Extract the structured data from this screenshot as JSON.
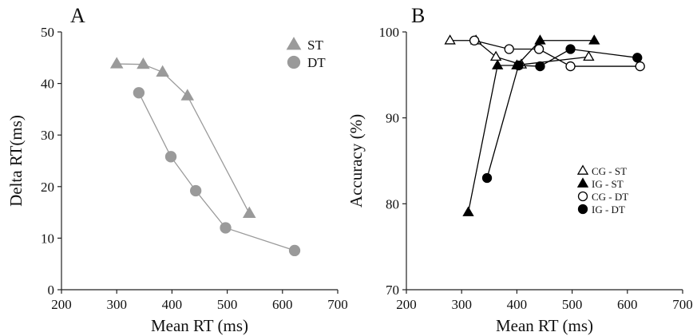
{
  "colors": {
    "gray": "#9a9a9a",
    "black": "#000000",
    "open_fill": "#ffffff",
    "axis": "#222222"
  },
  "chart_data": [
    {
      "type": "line",
      "panel_label": "A",
      "title": "",
      "xlabel": "Mean RT (ms)",
      "ylabel": "Delta RT(ms)",
      "xlim": [
        200,
        700
      ],
      "ylim": [
        0,
        50
      ],
      "x_ticks": [
        200,
        300,
        400,
        500,
        600,
        700
      ],
      "y_ticks": [
        0,
        10,
        20,
        30,
        40,
        50
      ],
      "legend_position": "top-right",
      "grid": false,
      "series": [
        {
          "name": "ST",
          "marker": "triangle",
          "color": "#9a9a9a",
          "filled": true,
          "points": [
            [
              300,
              43.8
            ],
            [
              348,
              43.7
            ],
            [
              383,
              42.2
            ],
            [
              428,
              37.6
            ],
            [
              540,
              14.8
            ]
          ]
        },
        {
          "name": "DT",
          "marker": "circle",
          "color": "#9a9a9a",
          "filled": true,
          "points": [
            [
              340,
              38.2
            ],
            [
              398,
              25.8
            ],
            [
              443,
              19.2
            ],
            [
              497,
              12.0
            ],
            [
              622,
              7.6
            ]
          ]
        }
      ]
    },
    {
      "type": "line",
      "panel_label": "B",
      "title": "",
      "xlabel": "Mean RT (ms)",
      "ylabel": "Accuracy (%)",
      "xlim": [
        200,
        700
      ],
      "ylim": [
        70,
        100
      ],
      "x_ticks": [
        200,
        300,
        400,
        500,
        600,
        700
      ],
      "y_ticks": [
        70,
        80,
        90,
        100
      ],
      "legend_position": "right",
      "grid": false,
      "series": [
        {
          "name": "CG - ST",
          "marker": "triangle",
          "color": "#000000",
          "filled": false,
          "points": [
            [
              279,
              99.0
            ],
            [
              326,
              99.0
            ],
            [
              362,
              97.1
            ],
            [
              408,
              96.2
            ],
            [
              530,
              97.1
            ]
          ]
        },
        {
          "name": "IG - ST",
          "marker": "triangle",
          "color": "#000000",
          "filled": true,
          "points": [
            [
              312,
              79.0
            ],
            [
              365,
              96.1
            ],
            [
              400,
              96.1
            ],
            [
              442,
              99.0
            ],
            [
              540,
              99.0
            ]
          ]
        },
        {
          "name": "CG - DT",
          "marker": "circle",
          "color": "#000000",
          "filled": false,
          "points": [
            [
              323,
              99.0
            ],
            [
              386,
              98.0
            ],
            [
              440,
              98.0
            ],
            [
              497,
              96.0
            ],
            [
              623,
              96.0
            ]
          ]
        },
        {
          "name": "IG - DT",
          "marker": "circle",
          "color": "#000000",
          "filled": true,
          "points": [
            [
              346,
              83.0
            ],
            [
              403,
              96.1
            ],
            [
              442,
              96.0
            ],
            [
              497,
              98.0
            ],
            [
              618,
              97.0
            ]
          ]
        }
      ]
    }
  ]
}
